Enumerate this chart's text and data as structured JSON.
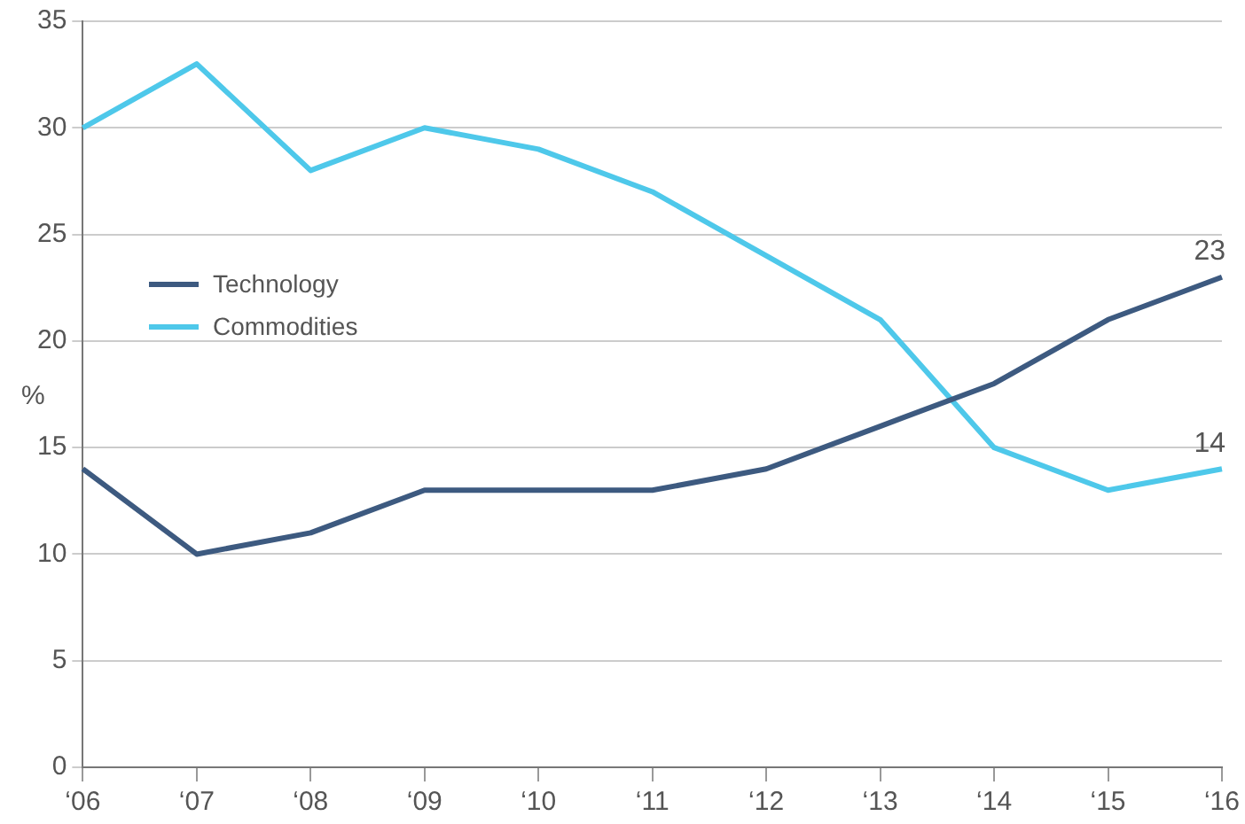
{
  "chart_data": {
    "type": "line",
    "ylabel": "%",
    "categories": [
      "‘06",
      "‘07",
      "‘08",
      "‘09",
      "‘10",
      "‘11",
      "‘12",
      "‘13",
      "‘14",
      "‘15",
      "‘16"
    ],
    "series": [
      {
        "name": "Technology",
        "color": "#3d5a80",
        "values": [
          14,
          10,
          11,
          13,
          13,
          13,
          14,
          16,
          18,
          21,
          23
        ],
        "value_labels": [
          null,
          null,
          null,
          null,
          null,
          null,
          null,
          null,
          null,
          null,
          "23"
        ]
      },
      {
        "name": "Commodities",
        "color": "#4ec8ea",
        "values": [
          30,
          33,
          28,
          30,
          29,
          27,
          24,
          21,
          15,
          13,
          14
        ],
        "value_labels": [
          null,
          null,
          null,
          null,
          null,
          null,
          null,
          null,
          null,
          null,
          "14"
        ]
      }
    ],
    "ylim": [
      0,
      35
    ],
    "yticks": [
      0,
      5,
      10,
      15,
      20,
      25,
      30,
      35
    ],
    "grid": "y",
    "legend": "top left",
    "marker": "none",
    "line_style": "solid"
  }
}
